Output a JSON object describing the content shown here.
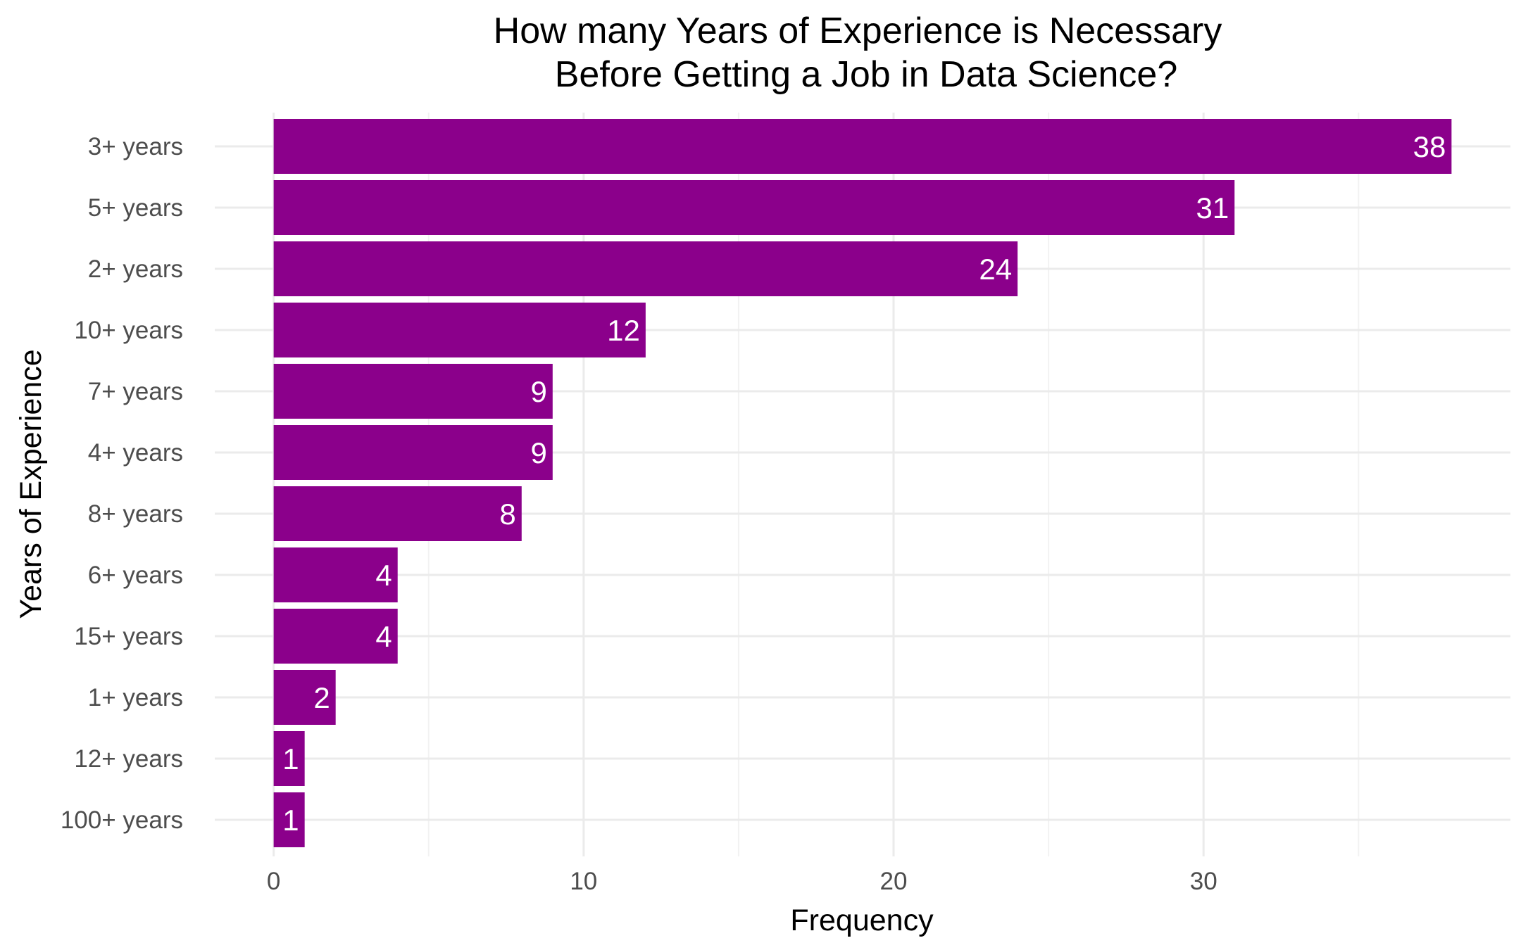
{
  "chart_data": {
    "type": "bar",
    "orientation": "horizontal",
    "title_lines": [
      "How many Years of Experience is Necessary",
      "Before Getting a Job in Data Science?"
    ],
    "xlabel": "Frequency",
    "ylabel": "Years of Experience",
    "categories": [
      "3+ years",
      "5+ years",
      "2+ years",
      "10+ years",
      "7+ years",
      "4+ years",
      "8+ years",
      "6+ years",
      "15+ years",
      "1+ years",
      "12+ years",
      "100+ years"
    ],
    "values": [
      38,
      31,
      24,
      12,
      9,
      9,
      8,
      4,
      4,
      2,
      1,
      1
    ],
    "data_labels": [
      "38",
      "31",
      "24",
      "12",
      "9",
      "9",
      "8",
      "4",
      "4",
      "2",
      "1",
      "1"
    ],
    "x_ticks": [
      0,
      10,
      20,
      30
    ],
    "x_tick_labels": [
      "0",
      "10",
      "20",
      "30"
    ],
    "x_minor_ticks": [
      5,
      15,
      25,
      35
    ],
    "xlim": [
      -1.9,
      39.9
    ],
    "bar_color": "#8B008B",
    "grid": true,
    "legend": "none"
  }
}
